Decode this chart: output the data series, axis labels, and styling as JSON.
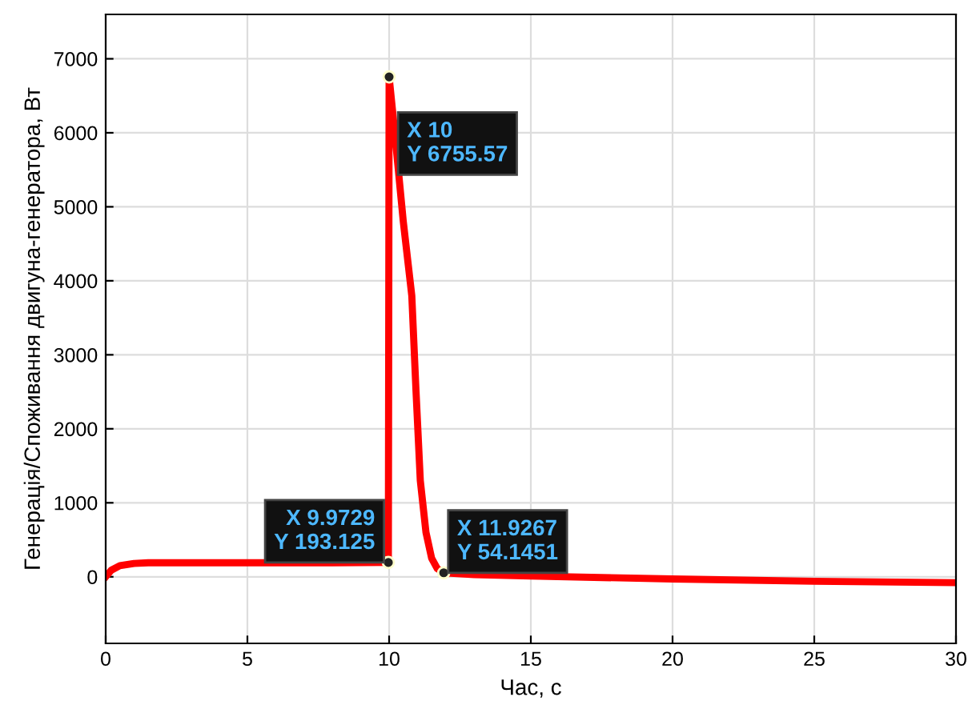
{
  "chart_data": {
    "type": "line",
    "xlabel": "Час, с",
    "ylabel": "Генерація/Споживання двигуна-генератора, Вт",
    "x": [
      0,
      0.2,
      0.5,
      1,
      1.5,
      2,
      3,
      5,
      8,
      9.9729,
      10,
      10.2,
      10.5,
      10.8,
      10.95,
      11.1,
      11.3,
      11.5,
      11.7,
      11.9267,
      13,
      15,
      20,
      25,
      30
    ],
    "series": [
      {
        "color": "#ff0000",
        "values": [
          0,
          90,
          150,
          180,
          190,
          190,
          190,
          190,
          190,
          193.125,
          6755.57,
          6000,
          4800,
          3800,
          2500,
          1300,
          600,
          250,
          110,
          54.1451,
          30,
          10,
          -30,
          -60,
          -80
        ]
      }
    ],
    "xlim": [
      0,
      30
    ],
    "ylim": [
      -900,
      7600
    ],
    "xticks": [
      0,
      5,
      10,
      15,
      20,
      25,
      30
    ],
    "yticks": [
      0,
      1000,
      2000,
      3000,
      4000,
      5000,
      6000,
      7000
    ],
    "grid": true,
    "marker": "none",
    "line_style": "solid",
    "annotations": [
      {
        "text": "X 9.9729\nY 193.125",
        "x": 9.9729,
        "y": 193.125
      },
      {
        "text": "X 10\nY 6755.57",
        "x": 10,
        "y": 6755.57
      },
      {
        "text": "X 11.9267\nY 54.1451",
        "x": 11.9267,
        "y": 54.1451
      }
    ]
  }
}
